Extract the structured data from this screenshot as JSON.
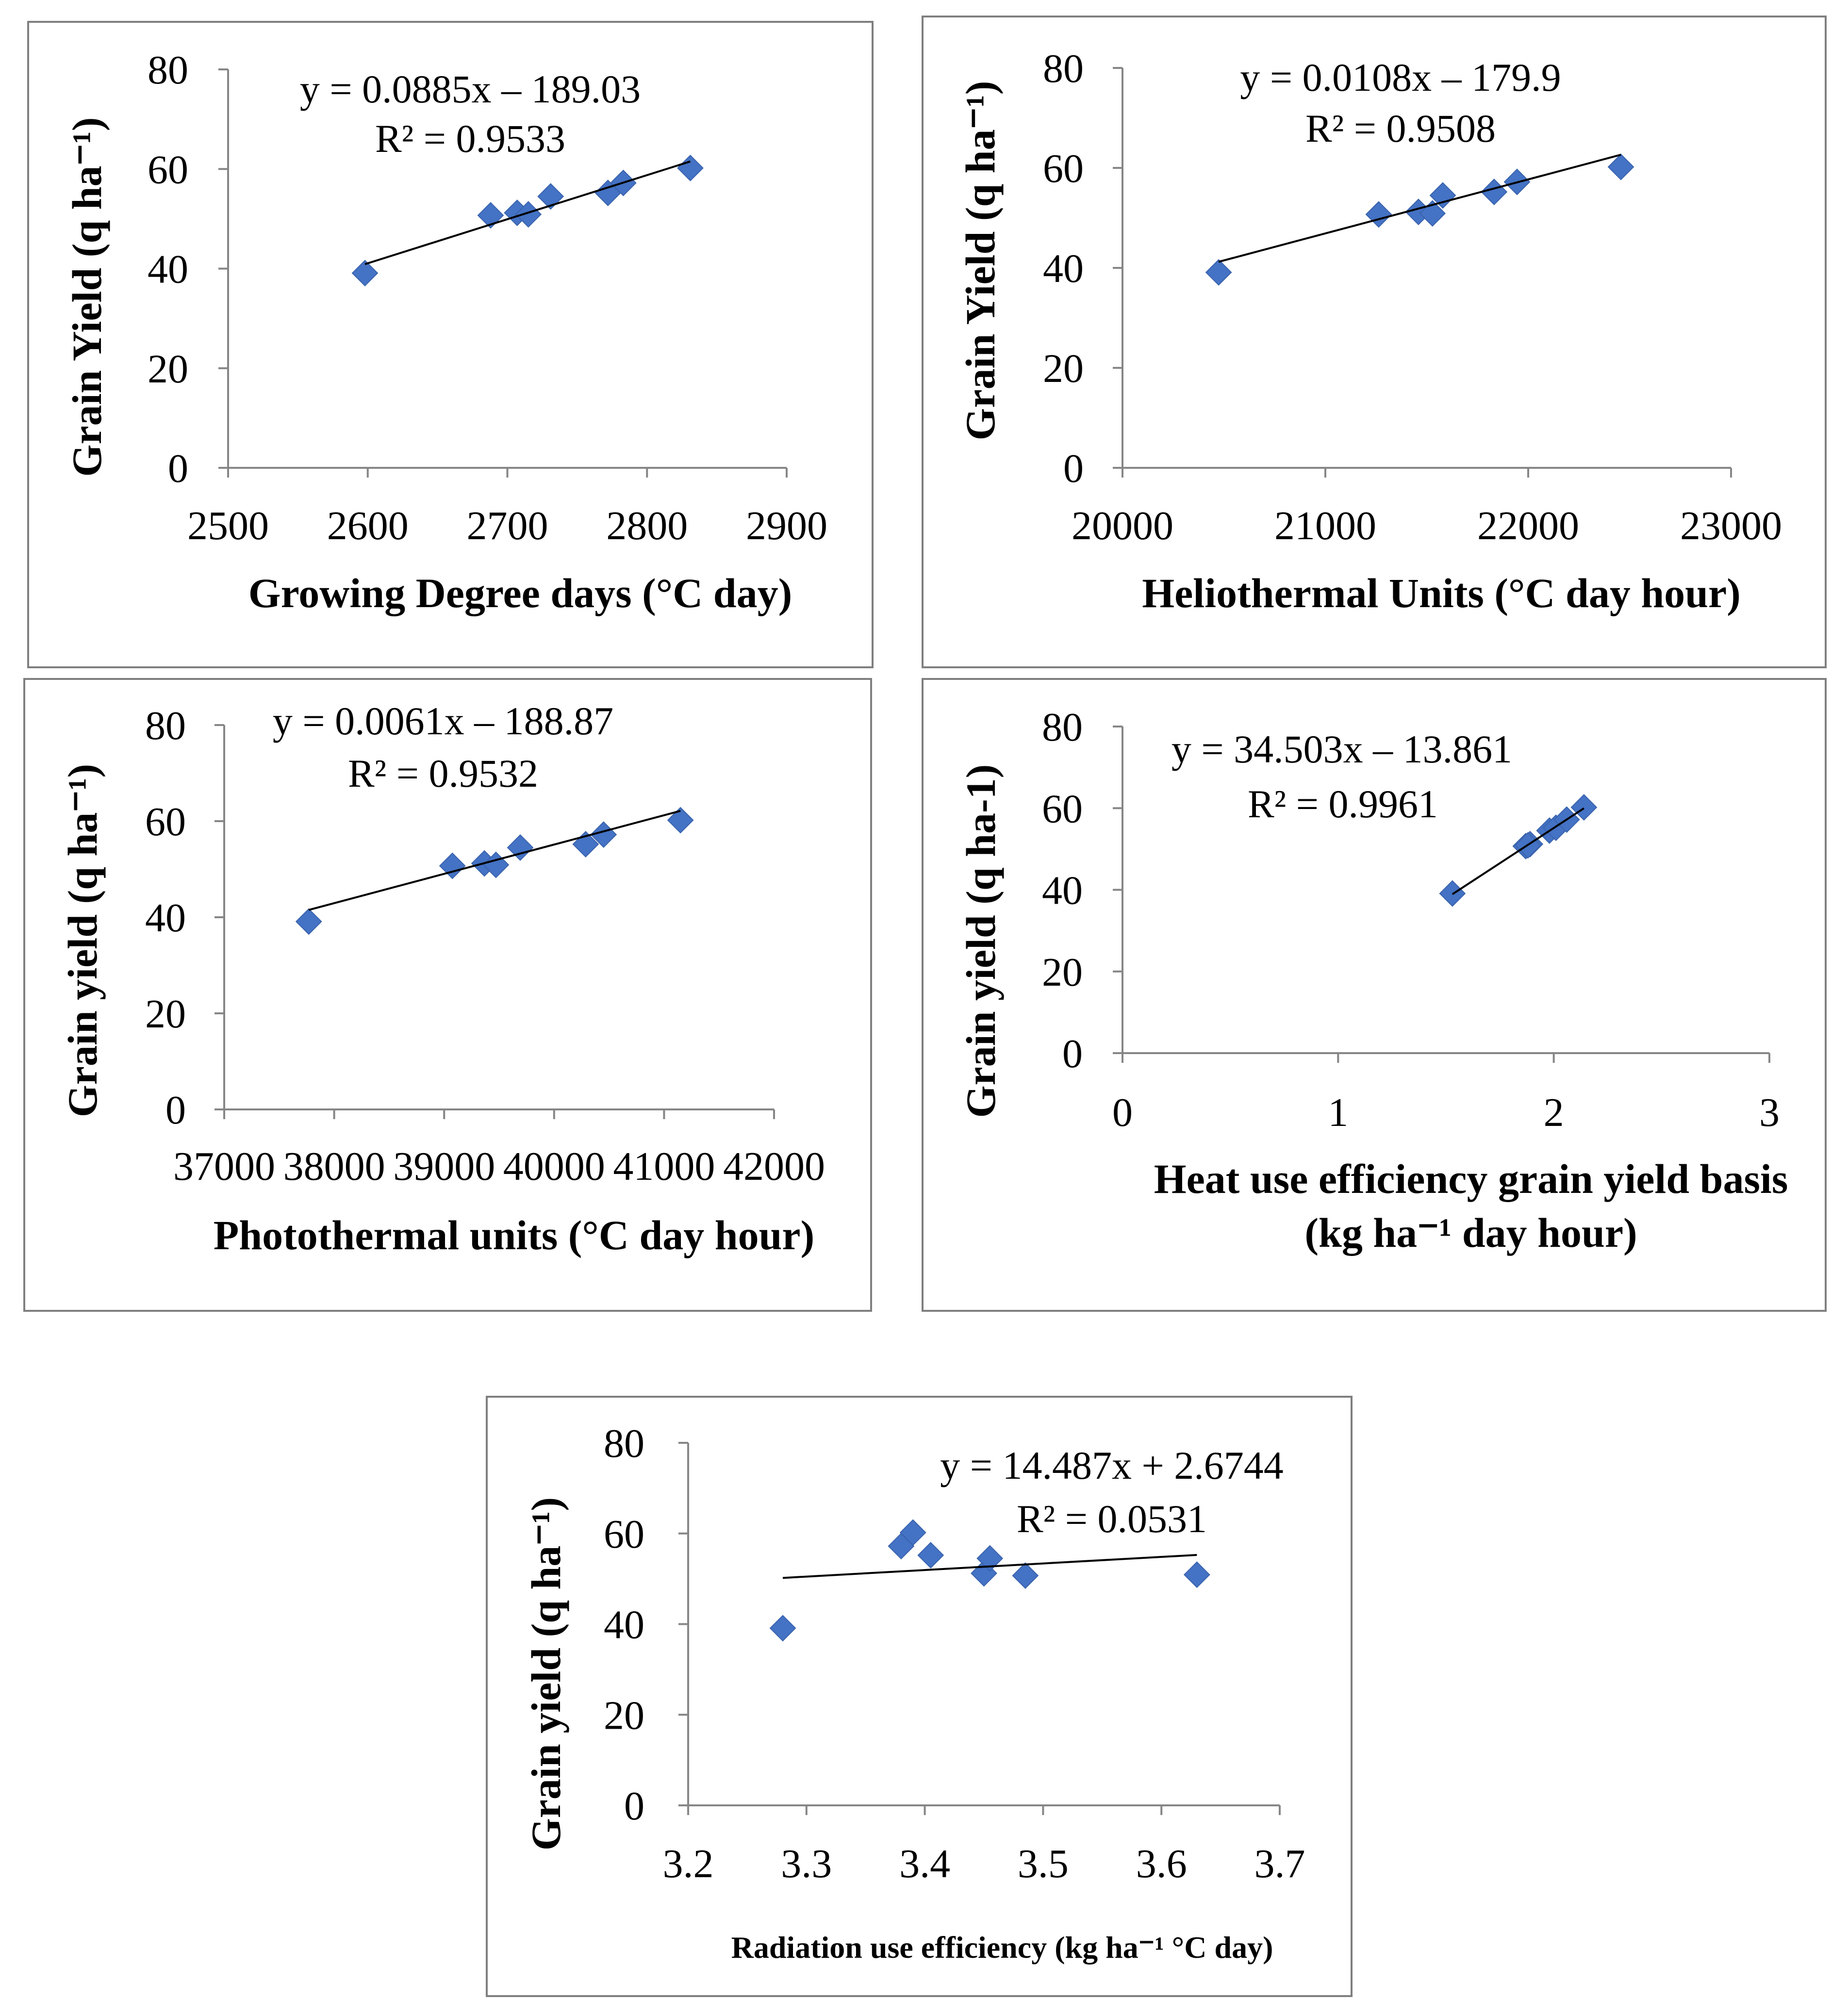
{
  "chart_data": [
    {
      "type": "scatter",
      "xlabel": "Growing Degree days (°C day)",
      "ylabel": "Grain Yield (q ha⁻¹)",
      "xlim": [
        2500,
        2900
      ],
      "ylim": [
        0,
        80
      ],
      "x_ticks": [
        2500,
        2600,
        2700,
        2800,
        2900
      ],
      "y_ticks": [
        0,
        20,
        40,
        60,
        80
      ],
      "grid": false,
      "series": [
        {
          "color": "#4472C4",
          "x": [
            2598,
            2688,
            2707,
            2715,
            2731,
            2772,
            2783,
            2831
          ],
          "y": [
            39.1,
            50.7,
            51.2,
            50.9,
            54.5,
            55.2,
            57.2,
            60.2
          ]
        }
      ],
      "trendline": {
        "slope": 0.0885,
        "intercept": -189.03,
        "color": "#000000",
        "equation": "y = 0.0885x – 189.03",
        "r2_label": "R² = 0.9533"
      }
    },
    {
      "type": "scatter",
      "xlabel": "Heliothermal Units (°C day hour)",
      "ylabel": "Grain Yield (q ha⁻¹)",
      "xlim": [
        20000,
        23000
      ],
      "ylim": [
        0,
        80
      ],
      "x_ticks": [
        20000,
        21000,
        22000,
        23000
      ],
      "y_ticks": [
        0,
        20,
        40,
        60,
        80
      ],
      "grid": false,
      "series": [
        {
          "color": "#4472C4",
          "x": [
            20474,
            21263,
            21459,
            21528,
            21579,
            21832,
            21945,
            22457
          ],
          "y": [
            39.1,
            50.7,
            51.2,
            50.9,
            54.5,
            55.2,
            57.2,
            60.2
          ]
        }
      ],
      "trendline": {
        "slope": 0.0108,
        "intercept": -179.9,
        "color": "#000000",
        "equation": "y = 0.0108x – 179.9",
        "r2_label": "R² = 0.9508"
      }
    },
    {
      "type": "scatter",
      "xlabel": "Photothermal units (°C day hour)",
      "ylabel": "Grain yield (q ha⁻¹)",
      "xlim": [
        37000,
        42000
      ],
      "ylim": [
        0,
        80
      ],
      "x_ticks": [
        37000,
        38000,
        39000,
        40000,
        41000,
        42000
      ],
      "y_ticks": [
        0,
        20,
        40,
        60,
        80
      ],
      "grid": false,
      "series": [
        {
          "color": "#4472C4",
          "x": [
            37769,
            39075,
            39366,
            39471,
            39692,
            40287,
            40450,
            41149
          ],
          "y": [
            39.1,
            50.7,
            51.2,
            50.9,
            54.5,
            55.2,
            57.2,
            60.2
          ]
        }
      ],
      "trendline": {
        "slope": 0.0061,
        "intercept": -188.87,
        "color": "#000000",
        "equation": "y = 0.0061x – 188.87",
        "r2_label": "R² = 0.9532"
      }
    },
    {
      "type": "scatter",
      "xlabel": [
        "Heat use efficiency grain yield basis",
        "(kg ha⁻¹ day hour)"
      ],
      "ylabel": "Grain yield (q ha-1)",
      "xlim": [
        0,
        3
      ],
      "ylim": [
        0,
        80
      ],
      "x_ticks": [
        0,
        1,
        2,
        3
      ],
      "y_ticks": [
        0,
        20,
        40,
        60,
        80
      ],
      "grid": false,
      "series": [
        {
          "color": "#4472C4",
          "x": [
            1.53,
            1.87,
            1.89,
            1.88,
            1.98,
            2.01,
            2.06,
            2.14
          ],
          "y": [
            39.1,
            50.7,
            51.2,
            50.9,
            54.5,
            55.2,
            57.2,
            60.2
          ]
        }
      ],
      "trendline": {
        "slope": 34.503,
        "intercept": -13.861,
        "color": "#000000",
        "equation": "y = 34.503x – 13.861",
        "r2_label": "R² = 0.9961"
      }
    },
    {
      "type": "scatter",
      "xlabel": "Radiation use efficiency (kg ha⁻¹ °C day)",
      "ylabel": "Grain yield (q ha⁻¹)",
      "xlim": [
        3.2,
        3.7
      ],
      "ylim": [
        0,
        80
      ],
      "x_ticks": [
        3.2,
        3.3,
        3.4,
        3.5,
        3.6,
        3.7
      ],
      "y_ticks": [
        0,
        20,
        40,
        60,
        80
      ],
      "grid": false,
      "series": [
        {
          "color": "#4472C4",
          "x": [
            3.28,
            3.38,
            3.39,
            3.405,
            3.45,
            3.455,
            3.485,
            3.63
          ],
          "y": [
            39.1,
            57.2,
            60.2,
            55.2,
            51.2,
            54.5,
            50.7,
            50.9
          ]
        }
      ],
      "trendline": {
        "slope": 14.487,
        "intercept": 2.6744,
        "color": "#000000",
        "equation": "y = 14.487x + 2.6744",
        "r2_label": "R² = 0.0531"
      }
    }
  ]
}
